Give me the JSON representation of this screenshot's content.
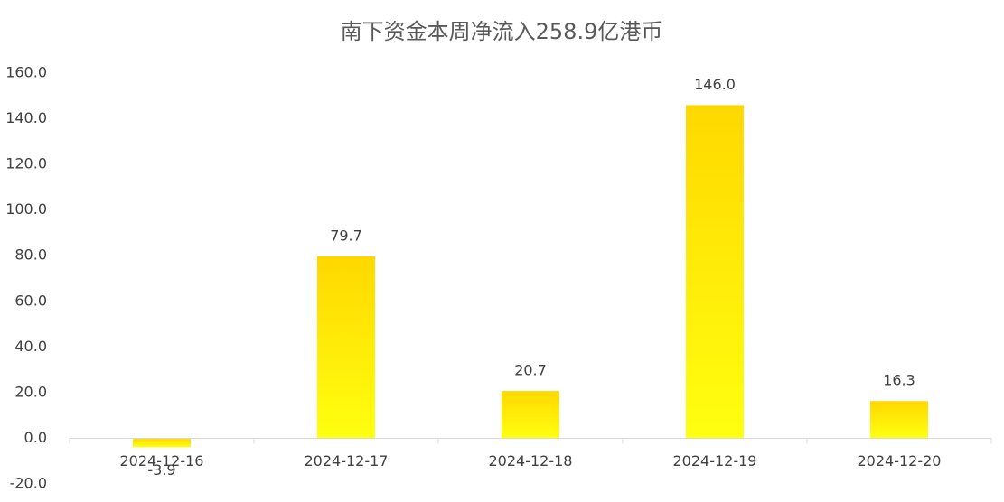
{
  "chart_data": {
    "type": "bar",
    "title": "南下资金本周净流入258.9亿港币",
    "categories": [
      "2024-12-16",
      "2024-12-17",
      "2024-12-18",
      "2024-12-19",
      "2024-12-20"
    ],
    "values": [
      -3.9,
      79.7,
      20.7,
      146.0,
      16.3
    ],
    "value_labels": [
      "-3.9",
      "79.7",
      "20.7",
      "146.0",
      "16.3"
    ],
    "color": "#ffd800",
    "ylim": [
      -20,
      160
    ],
    "yticks": [
      {
        "value": -20,
        "label": "-20.0"
      },
      {
        "value": 0,
        "label": "0.0"
      },
      {
        "value": 20,
        "label": "20.0"
      },
      {
        "value": 40,
        "label": "40.0"
      },
      {
        "value": 60,
        "label": "60.0"
      },
      {
        "value": 80,
        "label": "80.0"
      },
      {
        "value": 100,
        "label": "100.0"
      },
      {
        "value": 120,
        "label": "120.0"
      },
      {
        "value": 140,
        "label": "140.0"
      },
      {
        "value": 160,
        "label": "160.0"
      }
    ],
    "grid": false
  }
}
